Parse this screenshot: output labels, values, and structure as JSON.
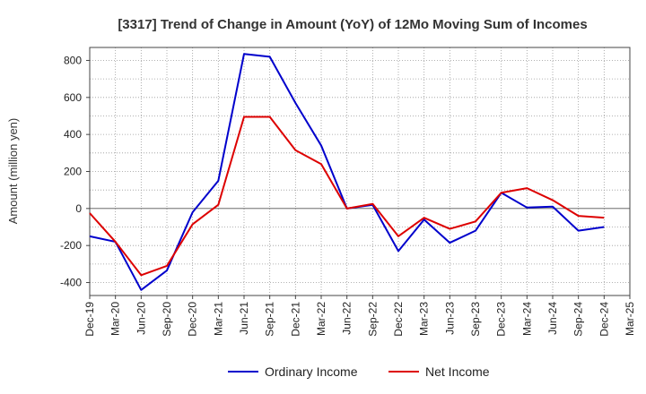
{
  "chart_data": {
    "type": "line",
    "title": "[3317]  Trend of Change in Amount (YoY) of 12Mo Moving Sum of Incomes",
    "xlabel": "",
    "ylabel": "Amount (million yen)",
    "ylim": [
      -470,
      870
    ],
    "yticks": [
      800,
      600,
      400,
      200,
      0,
      -200,
      -400
    ],
    "grid": true,
    "legend_position": "bottom",
    "categories": [
      "Dec-19",
      "Mar-20",
      "Jun-20",
      "Sep-20",
      "Dec-20",
      "Mar-21",
      "Jun-21",
      "Sep-21",
      "Dec-21",
      "Mar-22",
      "Jun-22",
      "Sep-22",
      "Dec-22",
      "Mar-23",
      "Jun-23",
      "Sep-23",
      "Dec-23",
      "Mar-24",
      "Jun-24",
      "Sep-24",
      "Dec-24",
      "Mar-25"
    ],
    "series": [
      {
        "name": "Ordinary Income",
        "color": "#0000cc",
        "values": [
          -150,
          -180,
          -440,
          -335,
          -20,
          150,
          835,
          820,
          570,
          340,
          0,
          20,
          -230,
          -60,
          -185,
          -120,
          85,
          5,
          10,
          -120,
          -100,
          null
        ]
      },
      {
        "name": "Net Income",
        "color": "#dd0000",
        "values": [
          -25,
          -180,
          -360,
          -310,
          -85,
          20,
          495,
          495,
          315,
          240,
          0,
          25,
          -150,
          -50,
          -110,
          -70,
          85,
          110,
          45,
          -40,
          -50,
          null
        ]
      }
    ]
  }
}
